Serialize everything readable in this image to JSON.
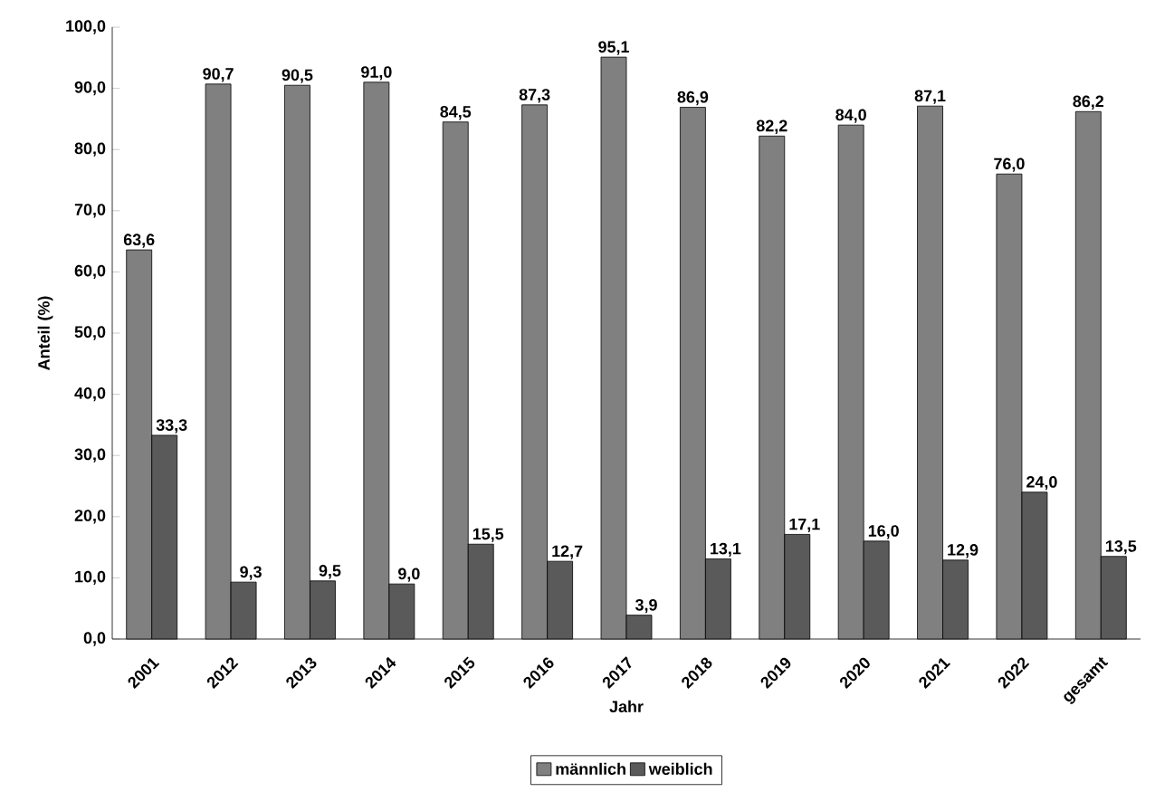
{
  "chart_data": {
    "type": "bar",
    "xlabel": "Jahr",
    "ylabel": "Anteil (%)",
    "categories": [
      "2001",
      "2012",
      "2013",
      "2014",
      "2015",
      "2016",
      "2017",
      "2018",
      "2019",
      "2020",
      "2021",
      "2022",
      "gesamt"
    ],
    "series": [
      {
        "name": "männlich",
        "color": "#808080",
        "values": [
          63.6,
          90.7,
          90.5,
          91.0,
          84.5,
          87.3,
          95.1,
          86.9,
          82.2,
          84.0,
          87.1,
          76.0,
          86.2
        ],
        "value_labels": [
          "63,6",
          "90,7",
          "90,5",
          "91,0",
          "84,5",
          "87,3",
          "95,1",
          "86,9",
          "82,2",
          "84,0",
          "87,1",
          "76,0",
          "86,2"
        ]
      },
      {
        "name": "weiblich",
        "color": "#5a5a5a",
        "values": [
          33.3,
          9.3,
          9.5,
          9.0,
          15.5,
          12.7,
          3.9,
          13.1,
          17.1,
          16.0,
          12.9,
          24.0,
          13.5
        ],
        "value_labels": [
          "33,3",
          "9,3",
          "9,5",
          "9,0",
          "15,5",
          "12,7",
          "3,9",
          "13,1",
          "17,1",
          "16,0",
          "12,9",
          "24,0",
          "13,5"
        ]
      }
    ],
    "ylim": [
      0,
      100
    ],
    "yticks": [
      {
        "value": 0,
        "label": "0,0"
      },
      {
        "value": 10,
        "label": "10,0"
      },
      {
        "value": 20,
        "label": "20,0"
      },
      {
        "value": 30,
        "label": "30,0"
      },
      {
        "value": 40,
        "label": "40,0"
      },
      {
        "value": 50,
        "label": "50,0"
      },
      {
        "value": 60,
        "label": "60,0"
      },
      {
        "value": 70,
        "label": "70,0"
      },
      {
        "value": 80,
        "label": "80,0"
      },
      {
        "value": 90,
        "label": "90,0"
      },
      {
        "value": 100,
        "label": "100,0"
      }
    ],
    "grid": false,
    "legend": "bottom"
  }
}
